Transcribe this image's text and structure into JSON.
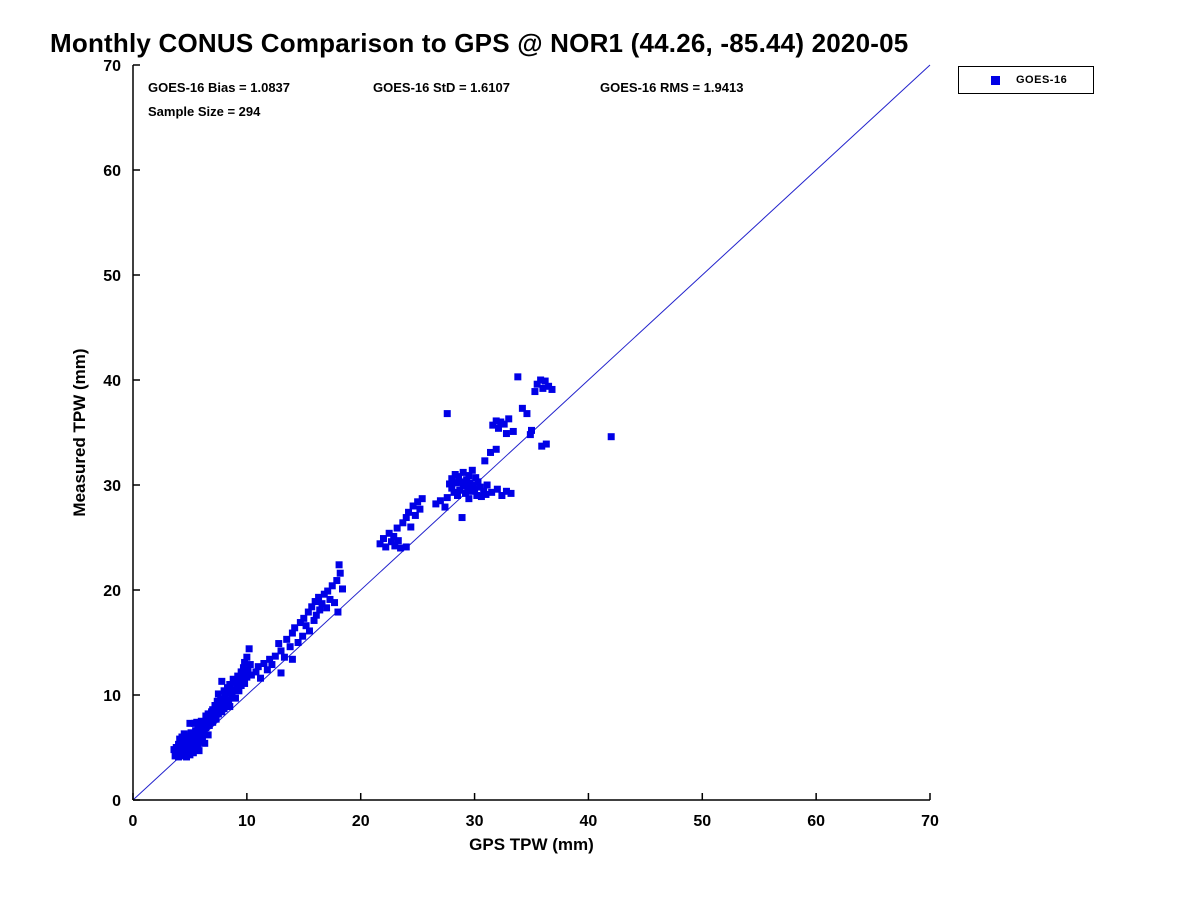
{
  "title": "Monthly CONUS Comparison to GPS @ NOR1 (44.26, -85.44) 2020-05",
  "annotations": {
    "bias": "GOES-16 Bias = 1.0837",
    "std": "GOES-16 StD = 1.6107",
    "rms": "GOES-16 RMS = 1.9413",
    "sample_size": "Sample Size = 294"
  },
  "legend": {
    "items": [
      {
        "label": "GOES-16",
        "marker": "square",
        "color": "#0000E6"
      }
    ]
  },
  "chart_data": {
    "type": "scatter",
    "title": "Monthly CONUS Comparison to GPS @ NOR1 (44.26, -85.44) 2020-05",
    "xlabel": "GPS TPW (mm)",
    "ylabel": "Measured TPW (mm)",
    "xlim": [
      0,
      70
    ],
    "ylim": [
      0,
      70
    ],
    "xticks": [
      0,
      10,
      20,
      30,
      40,
      50,
      60,
      70
    ],
    "yticks": [
      0,
      10,
      20,
      30,
      40,
      50,
      60,
      70
    ],
    "grid": false,
    "legend_position": "top-right-outside",
    "marker_color": "#0000E6",
    "axis_color": "#000000",
    "reference_line": {
      "label": "one-to-one line",
      "x": [
        0,
        70
      ],
      "y": [
        0,
        70
      ],
      "color": "#2222CC"
    },
    "stats": {
      "bias": 1.0837,
      "std": 1.6107,
      "rms": 1.9413,
      "sample_size": 294
    },
    "series": [
      {
        "name": "GOES-16",
        "points": [
          [
            3.6,
            4.8
          ],
          [
            3.7,
            4.2
          ],
          [
            3.8,
            5.0
          ],
          [
            3.9,
            4.4
          ],
          [
            4.0,
            4.1
          ],
          [
            4.0,
            5.3
          ],
          [
            4.1,
            4.6
          ],
          [
            4.1,
            5.8
          ],
          [
            4.2,
            4.3
          ],
          [
            4.2,
            5.1
          ],
          [
            4.3,
            4.8
          ],
          [
            4.3,
            6.0
          ],
          [
            4.4,
            4.2
          ],
          [
            4.4,
            5.5
          ],
          [
            4.5,
            4.9
          ],
          [
            4.5,
            6.3
          ],
          [
            4.6,
            4.4
          ],
          [
            4.6,
            5.2
          ],
          [
            4.7,
            5.7
          ],
          [
            4.7,
            4.1
          ],
          [
            4.8,
            5.0
          ],
          [
            4.8,
            6.1
          ],
          [
            4.9,
            4.6
          ],
          [
            4.9,
            5.4
          ],
          [
            5.0,
            4.3
          ],
          [
            5.0,
            5.9
          ],
          [
            5.0,
            7.3
          ],
          [
            5.1,
            5.1
          ],
          [
            5.1,
            6.4
          ],
          [
            5.2,
            4.8
          ],
          [
            5.2,
            5.6
          ],
          [
            5.3,
            6.2
          ],
          [
            5.3,
            4.5
          ],
          [
            5.4,
            5.3
          ],
          [
            5.4,
            7.3
          ],
          [
            5.5,
            4.9
          ],
          [
            5.5,
            6.6
          ],
          [
            5.6,
            5.8
          ],
          [
            5.6,
            7.4
          ],
          [
            5.7,
            5.2
          ],
          [
            5.7,
            6.9
          ],
          [
            5.8,
            6.1
          ],
          [
            5.8,
            4.7
          ],
          [
            5.9,
            7.3
          ],
          [
            5.9,
            5.6
          ],
          [
            6.0,
            6.4
          ],
          [
            6.0,
            7.5
          ],
          [
            6.1,
            5.9
          ],
          [
            6.1,
            7.0
          ],
          [
            6.2,
            6.6
          ],
          [
            6.3,
            7.3
          ],
          [
            6.3,
            5.4
          ],
          [
            6.4,
            6.9
          ],
          [
            6.4,
            8.0
          ],
          [
            6.5,
            7.6
          ],
          [
            6.6,
            6.2
          ],
          [
            6.6,
            8.2
          ],
          [
            6.7,
            7.1
          ],
          [
            6.8,
            7.8
          ],
          [
            6.9,
            8.4
          ],
          [
            7.0,
            7.4
          ],
          [
            7.0,
            8.6
          ],
          [
            7.1,
            8.0
          ],
          [
            7.2,
            9.0
          ],
          [
            7.3,
            7.7
          ],
          [
            7.3,
            8.8
          ],
          [
            7.4,
            9.4
          ],
          [
            7.5,
            8.2
          ],
          [
            7.5,
            10.1
          ],
          [
            7.6,
            8.9
          ],
          [
            7.7,
            9.6
          ],
          [
            7.8,
            8.4
          ],
          [
            7.8,
            11.3
          ],
          [
            7.9,
            9.1
          ],
          [
            8.0,
            8.7
          ],
          [
            8.0,
            10.4
          ],
          [
            8.1,
            9.8
          ],
          [
            8.2,
            9.2
          ],
          [
            8.3,
            10.7
          ],
          [
            8.4,
            9.5
          ],
          [
            8.5,
            8.9
          ],
          [
            8.5,
            11.0
          ],
          [
            8.6,
            10.2
          ],
          [
            8.7,
            9.9
          ],
          [
            8.8,
            11.5
          ],
          [
            8.9,
            10.5
          ],
          [
            9.0,
            9.7
          ],
          [
            9.0,
            11.2
          ],
          [
            9.1,
            10.8
          ],
          [
            9.2,
            11.8
          ],
          [
            9.3,
            10.4
          ],
          [
            9.4,
            11.4
          ],
          [
            9.5,
            10.9
          ],
          [
            9.5,
            12.2
          ],
          [
            9.6,
            11.6
          ],
          [
            9.7,
            12.6
          ],
          [
            9.8,
            11.1
          ],
          [
            9.8,
            13.1
          ],
          [
            9.9,
            12.0
          ],
          [
            10.0,
            11.7
          ],
          [
            10.0,
            13.6
          ],
          [
            10.1,
            12.4
          ],
          [
            10.2,
            14.4
          ],
          [
            10.3,
            12.9
          ],
          [
            10.4,
            11.9
          ],
          [
            10.8,
            12.2
          ],
          [
            11.0,
            12.7
          ],
          [
            11.2,
            11.6
          ],
          [
            11.5,
            13.0
          ],
          [
            11.8,
            12.4
          ],
          [
            12.0,
            13.4
          ],
          [
            12.2,
            12.9
          ],
          [
            12.5,
            13.7
          ],
          [
            12.8,
            14.9
          ],
          [
            13.0,
            12.1
          ],
          [
            13.0,
            14.2
          ],
          [
            13.3,
            13.6
          ],
          [
            13.5,
            15.3
          ],
          [
            13.8,
            14.6
          ],
          [
            14.0,
            15.9
          ],
          [
            14.0,
            13.4
          ],
          [
            14.2,
            16.4
          ],
          [
            14.5,
            15.0
          ],
          [
            14.7,
            16.9
          ],
          [
            14.9,
            15.6
          ],
          [
            15.0,
            17.3
          ],
          [
            15.2,
            16.6
          ],
          [
            15.4,
            17.9
          ],
          [
            15.5,
            16.1
          ],
          [
            15.7,
            18.4
          ],
          [
            15.9,
            17.1
          ],
          [
            16.0,
            18.9
          ],
          [
            16.1,
            17.6
          ],
          [
            16.3,
            19.3
          ],
          [
            16.4,
            18.1
          ],
          [
            16.6,
            18.7
          ],
          [
            16.8,
            19.6
          ],
          [
            17.0,
            18.3
          ],
          [
            17.1,
            19.9
          ],
          [
            17.3,
            19.1
          ],
          [
            17.5,
            20.4
          ],
          [
            17.7,
            18.8
          ],
          [
            17.9,
            20.9
          ],
          [
            18.0,
            17.9
          ],
          [
            18.1,
            22.4
          ],
          [
            18.2,
            21.6
          ],
          [
            18.4,
            20.1
          ],
          [
            21.7,
            24.4
          ],
          [
            22.0,
            24.9
          ],
          [
            22.2,
            24.1
          ],
          [
            22.5,
            25.4
          ],
          [
            22.7,
            24.6
          ],
          [
            22.9,
            25.1
          ],
          [
            23.0,
            24.2
          ],
          [
            23.2,
            25.9
          ],
          [
            23.3,
            24.7
          ],
          [
            23.5,
            24.0
          ],
          [
            23.7,
            26.4
          ],
          [
            24.0,
            26.9
          ],
          [
            24.0,
            24.1
          ],
          [
            24.2,
            27.4
          ],
          [
            24.4,
            26.0
          ],
          [
            24.6,
            28.0
          ],
          [
            24.8,
            27.1
          ],
          [
            25.0,
            28.4
          ],
          [
            25.2,
            27.7
          ],
          [
            25.4,
            28.7
          ],
          [
            26.6,
            28.2
          ],
          [
            27.0,
            28.5
          ],
          [
            27.4,
            27.9
          ],
          [
            27.6,
            28.8
          ],
          [
            27.6,
            36.8
          ],
          [
            27.8,
            30.1
          ],
          [
            28.0,
            29.7
          ],
          [
            28.0,
            30.6
          ],
          [
            28.2,
            29.3
          ],
          [
            28.3,
            31.0
          ],
          [
            28.4,
            30.2
          ],
          [
            28.5,
            29.0
          ],
          [
            28.6,
            30.8
          ],
          [
            28.7,
            29.5
          ],
          [
            28.8,
            30.3
          ],
          [
            28.9,
            26.9
          ],
          [
            29.0,
            29.9
          ],
          [
            29.0,
            31.2
          ],
          [
            29.1,
            30.0
          ],
          [
            29.2,
            29.2
          ],
          [
            29.3,
            30.5
          ],
          [
            29.4,
            29.7
          ],
          [
            29.5,
            30.9
          ],
          [
            29.5,
            28.7
          ],
          [
            29.6,
            30.2
          ],
          [
            29.7,
            29.4
          ],
          [
            29.8,
            31.4
          ],
          [
            29.9,
            30.0
          ],
          [
            30.0,
            29.6
          ],
          [
            30.1,
            30.7
          ],
          [
            30.2,
            29.0
          ],
          [
            30.3,
            30.3
          ],
          [
            30.5,
            29.8
          ],
          [
            30.6,
            28.9
          ],
          [
            30.8,
            29.4
          ],
          [
            31.0,
            29.1
          ],
          [
            31.1,
            30.0
          ],
          [
            31.5,
            29.3
          ],
          [
            32.0,
            29.6
          ],
          [
            32.4,
            29.0
          ],
          [
            32.8,
            29.4
          ],
          [
            33.2,
            29.2
          ],
          [
            30.9,
            32.3
          ],
          [
            31.4,
            33.1
          ],
          [
            31.9,
            33.4
          ],
          [
            31.6,
            35.7
          ],
          [
            31.9,
            36.1
          ],
          [
            32.1,
            35.4
          ],
          [
            32.3,
            36.0
          ],
          [
            32.6,
            35.8
          ],
          [
            33.0,
            36.3
          ],
          [
            32.8,
            34.9
          ],
          [
            33.4,
            35.1
          ],
          [
            33.8,
            40.3
          ],
          [
            34.2,
            37.3
          ],
          [
            34.6,
            36.8
          ],
          [
            34.9,
            34.8
          ],
          [
            35.0,
            35.2
          ],
          [
            35.3,
            38.9
          ],
          [
            35.5,
            39.6
          ],
          [
            35.8,
            40.0
          ],
          [
            35.9,
            33.7
          ],
          [
            36.0,
            39.2
          ],
          [
            36.2,
            39.9
          ],
          [
            36.3,
            33.9
          ],
          [
            36.5,
            39.4
          ],
          [
            36.8,
            39.1
          ],
          [
            42.0,
            34.6
          ]
        ]
      }
    ]
  }
}
